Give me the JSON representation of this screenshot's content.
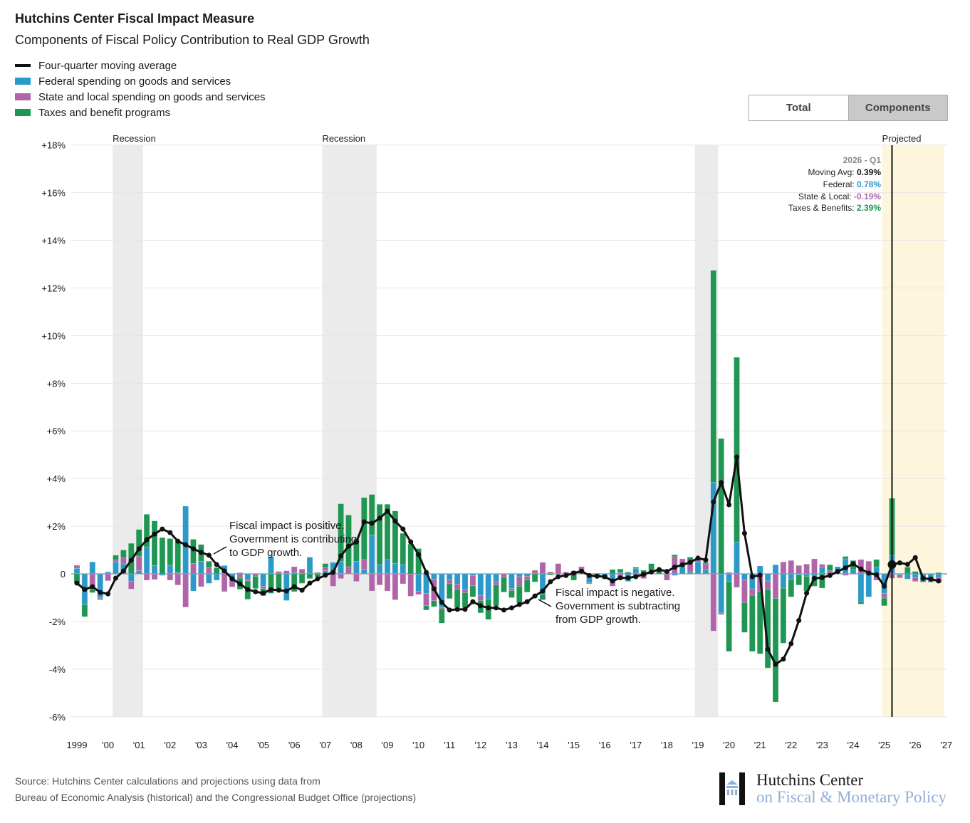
{
  "header": {
    "title": "Hutchins Center Fiscal Impact Measure",
    "subtitle": "Components of Fiscal Policy Contribution to Real GDP Growth"
  },
  "legend": [
    {
      "label": "Four-quarter moving average",
      "color": "#111111",
      "kind": "line"
    },
    {
      "label": "Federal spending on goods and services",
      "color": "#2b9ac9",
      "kind": "box"
    },
    {
      "label": "State and local spending on goods and services",
      "color": "#b065a9",
      "kind": "box"
    },
    {
      "label": "Taxes and benefit programs",
      "color": "#1f9652",
      "kind": "box"
    }
  ],
  "toggle": {
    "total_label": "Total",
    "components_label": "Components",
    "selected": "Components"
  },
  "tooltip": {
    "period": "2026 - Q1",
    "rows": [
      {
        "label": "Moving Avg: ",
        "value": "0.39%",
        "color": "#111111"
      },
      {
        "label": "Federal: ",
        "value": "0.78%",
        "color": "#2b9ac9"
      },
      {
        "label": "State & Local: ",
        "value": "-0.19%",
        "color": "#b065a9"
      },
      {
        "label": "Taxes & Benefits: ",
        "value": "2.39%",
        "color": "#1f9652"
      }
    ]
  },
  "annotations": {
    "positive": [
      "Fiscal impact is positive.",
      "Government is contributing",
      "to GDP growth."
    ],
    "negative": [
      "Fiscal impact is negative.",
      "Government is subtracting",
      "from GDP growth."
    ]
  },
  "source": {
    "line1": "Source: Hutchins Center calculations and projections using data from",
    "line2": "Bureau of Economic Analysis (historical) and the Congressional Budget Office (projections)"
  },
  "logo": {
    "line1": "Hutchins Center",
    "line2": "on Fiscal & Monetary Policy"
  },
  "chart_data": {
    "type": "bar",
    "stacked": true,
    "title": "Components of Fiscal Policy Contribution to Real GDP Growth",
    "ylabel": "",
    "ylim": [
      -6,
      18
    ],
    "y_ticks": [
      18,
      16,
      14,
      12,
      10,
      8,
      6,
      4,
      2,
      0,
      -2,
      -4,
      -6
    ],
    "y_tick_labels": [
      "+18%",
      "+16%",
      "+14%",
      "+12%",
      "+10%",
      "+8%",
      "+6%",
      "+4%",
      "+2%",
      "0",
      "-2%",
      "-4%",
      "-6%"
    ],
    "x_start_year": 1999,
    "x_tick_labels": [
      "1999",
      "'00",
      "'01",
      "'02",
      "'03",
      "'04",
      "'05",
      "'06",
      "'07",
      "'08",
      "'09",
      "'10",
      "'11",
      "'12",
      "'13",
      "'14",
      "'15",
      "'16",
      "'17",
      "'18",
      "'19",
      "'20",
      "'21",
      "'22",
      "'23",
      "'24",
      "'25",
      "'26",
      "'27"
    ],
    "grid": true,
    "shaded_regions": [
      {
        "label": "Recession",
        "start": 2000.15,
        "end": 2001.13,
        "kind": "recession"
      },
      {
        "label": "Recession",
        "start": 2006.9,
        "end": 2008.65,
        "kind": "recession"
      },
      {
        "label": "",
        "start": 2018.9,
        "end": 2019.65,
        "kind": "recession"
      },
      {
        "label": "Projected",
        "start": 2024.93,
        "end": 2026.93,
        "kind": "projected"
      }
    ],
    "hover_index": 105,
    "series": [
      {
        "name": "Federal spending on goods and services",
        "color": "#2b9ac9",
        "values": [
          0.23,
          -1.3,
          0.5,
          -1.0,
          0.08,
          0.5,
          0.42,
          -0.32,
          0.13,
          1.13,
          0.35,
          -0.07,
          0.36,
          0.06,
          2.84,
          -0.72,
          0.53,
          -0.4,
          -0.27,
          0.35,
          -0.3,
          0.05,
          -0.25,
          0,
          -0.52,
          0.73,
          0,
          -1.12,
          0.06,
          0,
          0.7,
          0,
          0.13,
          0.48,
          0.53,
          0,
          0.53,
          0.2,
          1.64,
          0.38,
          0.6,
          0.43,
          0.38,
          0,
          -0.74,
          -0.82,
          -0.23,
          -1.42,
          -0.25,
          -0.43,
          -0.67,
          -0.08,
          -0.9,
          -1.07,
          -0.35,
          0,
          -0.62,
          -0.12,
          -0.1,
          0,
          -0.87,
          0,
          0,
          0,
          0,
          0,
          -0.37,
          0.03,
          -0.22,
          -0.37,
          0.06,
          -0.32,
          0.22,
          0,
          0,
          0,
          0.08,
          -0.07,
          0.3,
          0.08,
          0.5,
          0.17,
          3.84,
          -1.64,
          -0.33,
          1.34,
          -0.27,
          -0.63,
          0.33,
          -0.3,
          0.38,
          -0.6,
          -0.23,
          -0.05,
          -0.1,
          -0.15,
          0.27,
          0,
          0.3,
          0.63,
          0.18,
          -1.17,
          -0.97,
          0.28,
          -0.82,
          0.78,
          -0.05,
          -0.22,
          -0.17,
          -0.35,
          -0.3,
          -0.17
        ]
      },
      {
        "name": "State and local spending on goods and services",
        "color": "#b065a9",
        "values": [
          0.13,
          0,
          -0.67,
          -0.05,
          -0.29,
          0.08,
          0.26,
          -0.32,
          0.6,
          -0.27,
          -0.24,
          0,
          -0.27,
          -0.47,
          -1.4,
          0.43,
          -0.54,
          0.27,
          0,
          -0.72,
          -0.25,
          -0.18,
          -0.05,
          -0.1,
          -0.1,
          0,
          0.1,
          0.13,
          0.24,
          0.2,
          0,
          0.06,
          0.13,
          -0.52,
          -0.2,
          0.3,
          -0.32,
          0.4,
          -0.72,
          -0.47,
          -0.72,
          -1.09,
          -0.42,
          -0.94,
          -0.13,
          -0.52,
          -0.9,
          -0.05,
          -0.17,
          -0.22,
          -0.12,
          -0.42,
          -0.22,
          0,
          -0.12,
          -0.15,
          -0.08,
          -0.4,
          -0.15,
          0.15,
          0.48,
          0.08,
          0.43,
          0.08,
          0.13,
          0.3,
          -0.05,
          0,
          0,
          -0.15,
          -0.22,
          0,
          -0.12,
          -0.2,
          0.18,
          0,
          -0.27,
          0.72,
          0.33,
          0.4,
          0.15,
          0.25,
          -2.4,
          -0.07,
          0.06,
          -0.57,
          -0.93,
          -0.27,
          -0.73,
          -0.35,
          -1.03,
          0.5,
          0.56,
          0.35,
          0.41,
          0.63,
          0.13,
          0.13,
          0,
          -0.07,
          0,
          0.6,
          0.53,
          -0.27,
          -0.2,
          -0.19,
          -0.12,
          0,
          -0.15,
          0,
          0,
          -0.2
        ]
      },
      {
        "name": "Taxes and benefit programs",
        "color": "#1f9652",
        "values": [
          -0.4,
          -0.5,
          -0.12,
          -0.04,
          0,
          0.2,
          0.32,
          1.28,
          1.13,
          1.37,
          1.87,
          1.52,
          1.12,
          1.27,
          0,
          1.02,
          0.7,
          0.26,
          0.26,
          -0.03,
          0,
          -0.47,
          -0.77,
          -0.52,
          -0.3,
          -0.82,
          -0.67,
          0,
          -0.75,
          -0.4,
          -0.2,
          -0.12,
          0.17,
          0,
          2.41,
          2.17,
          0.93,
          2.6,
          1.69,
          2.54,
          2.32,
          2.21,
          1.32,
          1.25,
          1.06,
          -0.18,
          -0.25,
          -0.6,
          -0.62,
          -0.77,
          -0.63,
          -0.47,
          -0.52,
          -0.85,
          -0.87,
          -0.62,
          -0.3,
          -0.7,
          -0.52,
          -0.34,
          -0.22,
          -0.05,
          0,
          0,
          -0.27,
          0,
          0,
          -0.1,
          0,
          0.18,
          0.14,
          0.07,
          0.06,
          0.15,
          0.25,
          0.13,
          0,
          0.08,
          0,
          0.22,
          0,
          0.06,
          8.9,
          5.68,
          -2.93,
          7.75,
          -1.26,
          -2.36,
          -2.63,
          -3.3,
          -4.35,
          -2.31,
          -0.74,
          -0.42,
          -0.62,
          -0.37,
          -0.6,
          0.25,
          0,
          0.1,
          0.38,
          -0.1,
          0,
          0.32,
          -0.32,
          2.39,
          0,
          0.28,
          0.1,
          0,
          -0.05,
          0.05
        ]
      },
      {
        "name": "Four-quarter moving average",
        "color": "#111111",
        "type": "line",
        "values": [
          -0.39,
          -0.66,
          -0.54,
          -0.78,
          -0.84,
          -0.18,
          0.12,
          0.57,
          1.05,
          1.43,
          1.67,
          1.88,
          1.73,
          1.37,
          1.22,
          1.05,
          0.9,
          0.78,
          0.39,
          0.12,
          -0.21,
          -0.42,
          -0.66,
          -0.75,
          -0.81,
          -0.66,
          -0.69,
          -0.72,
          -0.54,
          -0.69,
          -0.39,
          -0.21,
          -0.06,
          0.06,
          0.75,
          1.16,
          1.34,
          2.18,
          2.12,
          2.33,
          2.63,
          2.21,
          1.88,
          1.34,
          0.81,
          0.06,
          -0.63,
          -1.2,
          -1.52,
          -1.49,
          -1.49,
          -1.17,
          -1.34,
          -1.43,
          -1.43,
          -1.52,
          -1.43,
          -1.29,
          -1.17,
          -0.93,
          -0.72,
          -0.33,
          -0.12,
          -0.07,
          0.03,
          0.11,
          -0.07,
          -0.1,
          -0.12,
          -0.3,
          -0.17,
          -0.17,
          -0.12,
          -0.02,
          0.08,
          0.18,
          0.1,
          0.28,
          0.38,
          0.48,
          0.66,
          0.58,
          3.02,
          3.83,
          2.9,
          4.9,
          1.7,
          -0.12,
          -0.06,
          -3.17,
          -3.8,
          -3.58,
          -2.93,
          -1.96,
          -0.81,
          -0.19,
          -0.16,
          -0.07,
          0.1,
          0.25,
          0.42,
          0.2,
          0.03,
          -0.04,
          -0.52,
          0.39,
          0.46,
          0.4,
          0.68,
          -0.19,
          -0.22,
          -0.3
        ]
      }
    ]
  }
}
